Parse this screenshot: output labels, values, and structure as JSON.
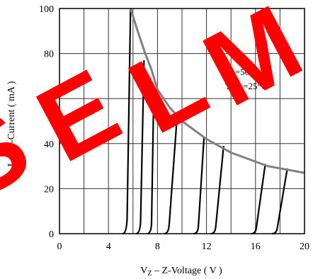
{
  "chart_data": {
    "type": "line",
    "xlabel": "Z-Voltage ( V )",
    "xlabel_prefix": "V",
    "xlabel_sub": "Z",
    "ylabel": "Z-Current ( mA )",
    "ylabel_prefix": "I",
    "ylabel_sub": "Z",
    "xlim": [
      0,
      20
    ],
    "ylim": [
      0,
      100
    ],
    "x_ticks": [
      "0",
      "4",
      "8",
      "12",
      "16",
      "20"
    ],
    "y_ticks": [
      "0",
      "20",
      "40",
      "60",
      "80",
      "100"
    ],
    "grid": true,
    "annotation": {
      "p_label": "P",
      "p_sub": "tot",
      "p_value": "=500mW",
      "t_label": "T",
      "t_sub": "amb",
      "t_value": "=25°C"
    },
    "power_limit_curve": {
      "x": [
        5.8,
        6.5,
        7.0,
        7.5,
        8.0,
        9.0,
        10.0,
        11.0,
        12.0,
        13.0,
        14.0,
        15.0,
        16.0,
        17.0,
        18.0,
        19.0,
        20.0
      ],
      "y": [
        100,
        88,
        80,
        73,
        64,
        56,
        50,
        46,
        42,
        39,
        36,
        34,
        32,
        30,
        29,
        28,
        27
      ]
    },
    "series": [
      {
        "vz": 5.5,
        "vmax": 5.8,
        "imax": 100
      },
      {
        "vz": 6.6,
        "vmax": 6.9,
        "imax": 77
      },
      {
        "vz": 7.5,
        "vmax": 7.7,
        "imax": 64
      },
      {
        "vz": 8.9,
        "vmax": 9.6,
        "imax": 52
      },
      {
        "vz": 11.3,
        "vmax": 11.8,
        "imax": 43
      },
      {
        "vz": 12.7,
        "vmax": 13.4,
        "imax": 39
      },
      {
        "vz": 16.0,
        "vmax": 16.8,
        "imax": 31
      },
      {
        "vz": 17.7,
        "vmax": 18.6,
        "imax": 29
      }
    ],
    "colors": {
      "grid": "#333333",
      "curves": "#000000",
      "power_limit": "#808080",
      "watermark": "#ff0000"
    }
  },
  "watermark": {
    "letter_1": "S",
    "letter_2": "E",
    "letter_3": "L",
    "letter_4": "M"
  }
}
